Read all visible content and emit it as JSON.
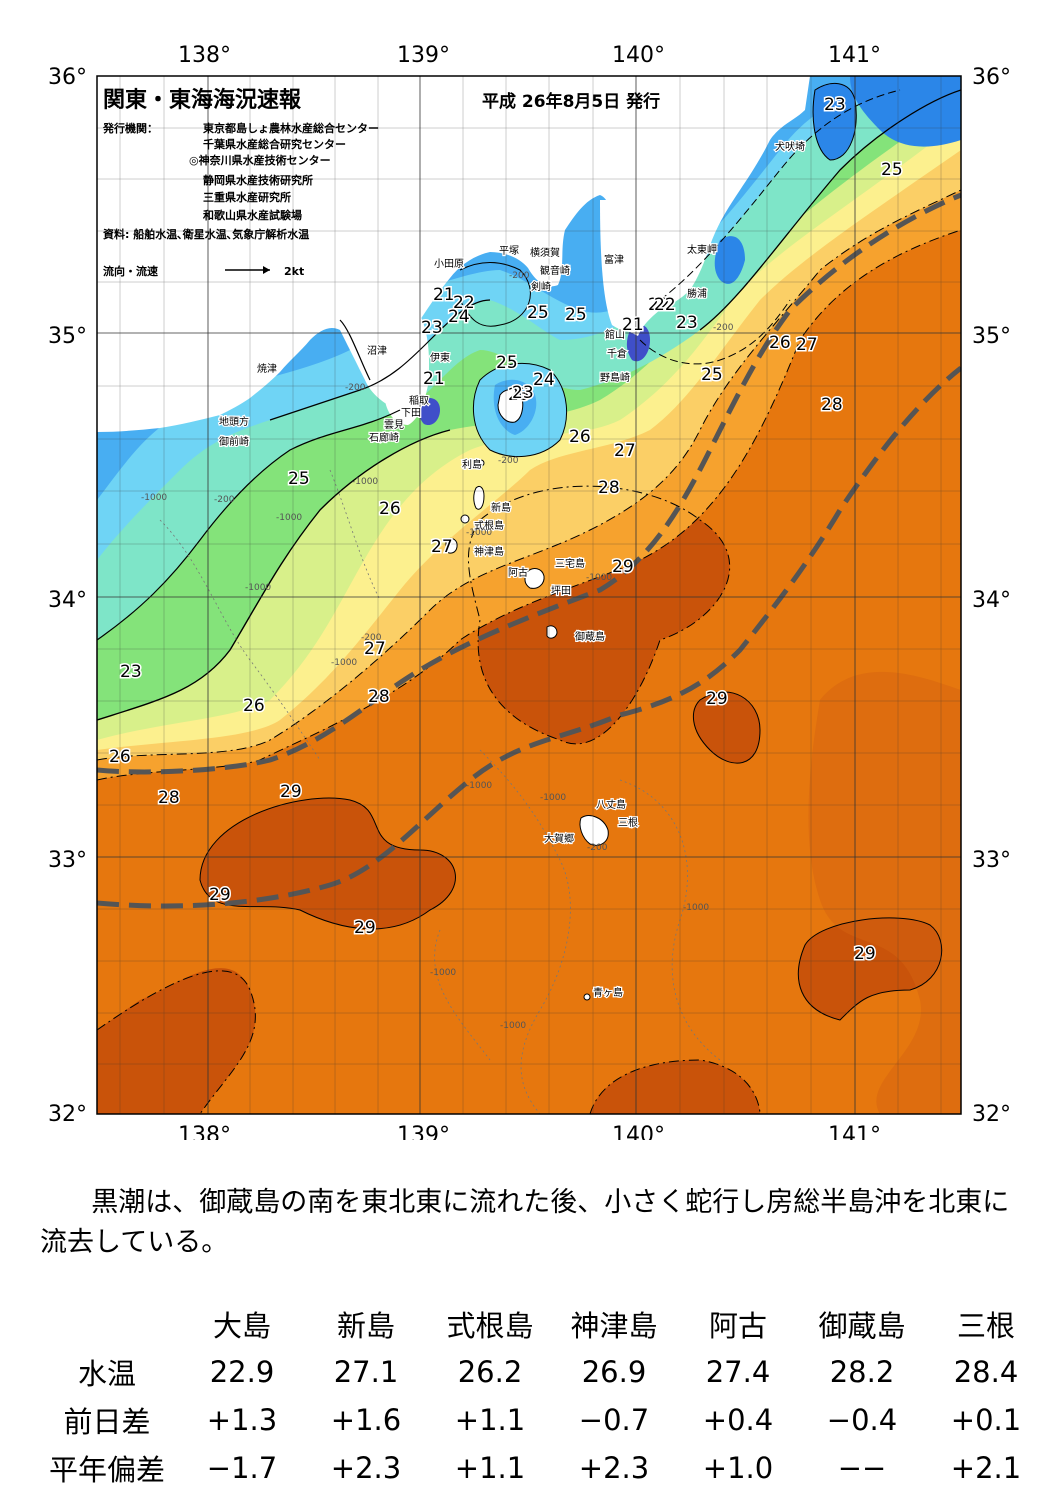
{
  "header": {
    "title": "関東・東海海況速報",
    "date": "平成 26年8月5日 発行",
    "issuer_label": "発行機関：",
    "issuers": [
      "東京都島しょ農林水産総合センター",
      "千葉県水産総合研究センター",
      "◎神奈川県水産技術センター",
      "静岡県水産技術研究所",
      "三重県水産研究所",
      "和歌山県水産試験場"
    ],
    "source": "資料: 船舶水温､衛星水温､気象庁解析水温",
    "flow_legend_label": "流向・流速",
    "flow_legend_speed": "2kt"
  },
  "axes": {
    "lon_labels": [
      "138°",
      "139°",
      "140°",
      "141°"
    ],
    "lat_labels": [
      "36°",
      "35°",
      "34°",
      "33°",
      "32°"
    ]
  },
  "isotherm_labels": [
    "23",
    "25",
    "21",
    "22",
    "23",
    "24",
    "25",
    "25",
    "21",
    "22",
    "23",
    "21",
    "23",
    "26",
    "27",
    "25",
    "28",
    "25",
    "24",
    "23",
    "26",
    "27",
    "28",
    "26",
    "29",
    "27",
    "25",
    "27",
    "26",
    "28",
    "29",
    "26",
    "29",
    "28",
    "29",
    "29",
    "29",
    "23",
    "22"
  ],
  "place_names": [
    "犬吠埼",
    "太東岬",
    "勝浦",
    "富津",
    "横須賀",
    "観音崎",
    "平塚",
    "小田原",
    "剣崎",
    "館山",
    "千倉",
    "野島崎",
    "沼津",
    "伊東",
    "焼津",
    "稲取",
    "下田",
    "雲見",
    "石廊崎",
    "地頭方",
    "御前崎",
    "利島",
    "新島",
    "式根島",
    "神津島",
    "三宅島",
    "阿古",
    "坪田",
    "御蔵島",
    "八丈島",
    "三根",
    "大賀郷",
    "青ヶ島"
  ],
  "depth_labels": [
    "-200",
    "-200",
    "-200",
    "-200",
    "-1000",
    "-200",
    "-1000",
    "-1000",
    "-1000",
    "-200",
    "-1000",
    "-1000",
    "-1000",
    "-1000",
    "-1000",
    "-200",
    "-1000",
    "-1000",
    "-1000"
  ],
  "summary": "黒潮は、御蔵島の南を東北東に流れた後、小さく蛇行し房総半島沖を北東に流去している。",
  "table": {
    "columns": [
      "大島",
      "新島",
      "式根島",
      "神津島",
      "阿古",
      "御蔵島",
      "三根"
    ],
    "rows": [
      {
        "label": "水温",
        "values": [
          "22.9",
          "27.1",
          "26.2",
          "26.9",
          "27.4",
          "28.2",
          "28.4"
        ]
      },
      {
        "label": "前日差",
        "values": [
          "+1.3",
          "+1.6",
          "+1.1",
          "−0.7",
          "+0.4",
          "−0.4",
          "+0.1"
        ]
      },
      {
        "label": "平年偏差",
        "values": [
          "−1.7",
          "+2.3",
          "+1.1",
          "+2.3",
          "+1.0",
          "−−",
          "+2.1"
        ]
      }
    ]
  },
  "colors": {
    "t21": "#3f4fc9",
    "t22": "#2b86e8",
    "t23": "#48aef2",
    "t24": "#6fd4f5",
    "t25": "#7ee5c8",
    "t26": "#84e37a",
    "t26b": "#d8f08a",
    "t27": "#fcf08e",
    "t27b": "#fbcf66",
    "t28": "#f6a22e",
    "t29": "#e6770e",
    "t29b": "#c9530a",
    "land": "#ffffff",
    "kuroshio": "#555555"
  }
}
